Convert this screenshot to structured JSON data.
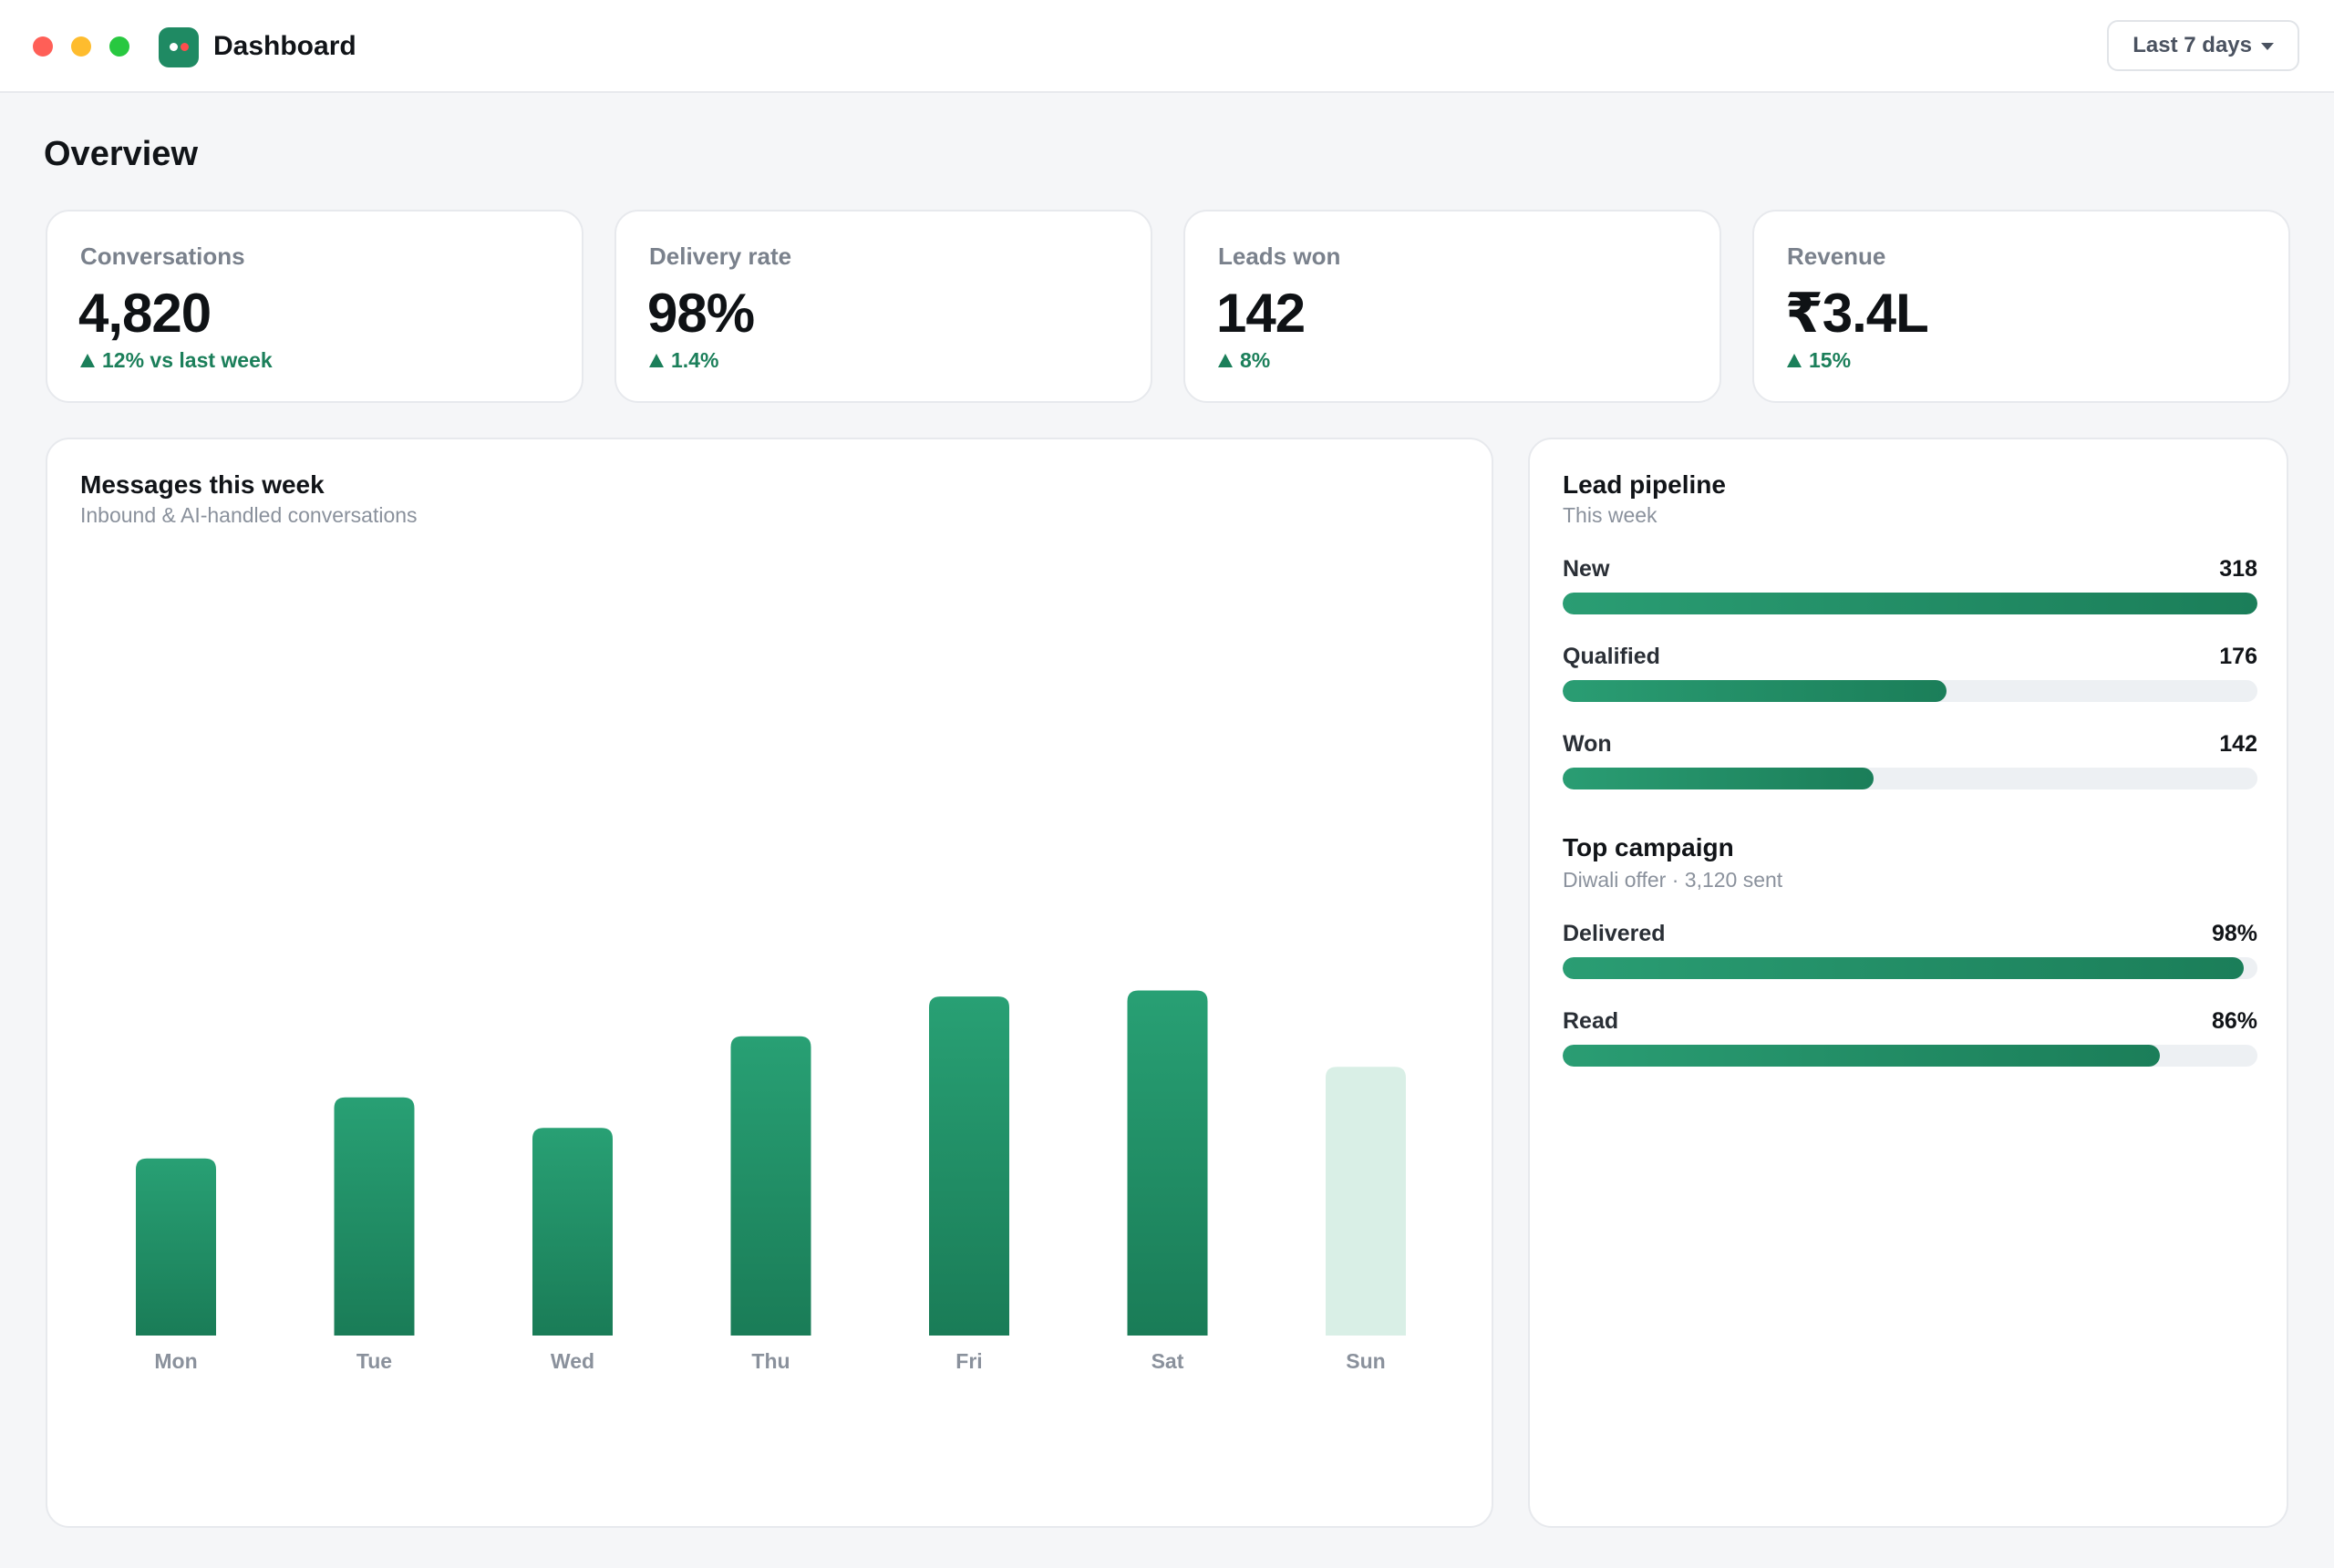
{
  "window": {
    "title": "Dashboard",
    "range_selector": "Last 7 days"
  },
  "page": {
    "section_title": "Overview"
  },
  "kpis": [
    {
      "label": "Conversations",
      "value": "4,820",
      "delta": "12% vs last week"
    },
    {
      "label": "Delivery rate",
      "value": "98%",
      "delta": "1.4%"
    },
    {
      "label": "Leads won",
      "value": "142",
      "delta": "8%"
    },
    {
      "label": "Revenue",
      "value": "₹3.4L",
      "delta": "15%"
    }
  ],
  "messages_panel": {
    "title": "Messages this week",
    "subtitle": "Inbound & AI-handled conversations"
  },
  "chart_data": {
    "type": "bar",
    "categories": [
      "Mon",
      "Tue",
      "Wed",
      "Thu",
      "Fri",
      "Sat",
      "Sun"
    ],
    "values": [
      58,
      78,
      68,
      98,
      111,
      113,
      88
    ],
    "highlight": [
      true,
      true,
      true,
      true,
      true,
      true,
      false
    ],
    "ylim": [
      0,
      120
    ],
    "grid": false,
    "title": "Messages this week",
    "xlabel": "",
    "ylabel": "",
    "colors": {
      "bar_top": "#28a074",
      "bar_bottom": "#1a7c57",
      "bar_muted": "#d9efe6",
      "tick": "#8a919c"
    }
  },
  "pipeline": {
    "title": "Lead pipeline",
    "subtitle": "This week",
    "rows": [
      {
        "label": "New",
        "value": "318",
        "fraction": 1.0
      },
      {
        "label": "Qualified",
        "value": "176",
        "fraction": 0.553
      },
      {
        "label": "Won",
        "value": "142",
        "fraction": 0.447
      }
    ]
  },
  "campaign": {
    "title": "Top campaign",
    "subtitle": "Diwali offer · 3,120 sent",
    "rows": [
      {
        "label": "Delivered",
        "value": "98%",
        "fraction": 0.98
      },
      {
        "label": "Read",
        "value": "86%",
        "fraction": 0.86
      }
    ]
  },
  "colors": {
    "accent": "#1f8a63",
    "positive": "#1b7f5a",
    "background": "#f5f6f8"
  }
}
